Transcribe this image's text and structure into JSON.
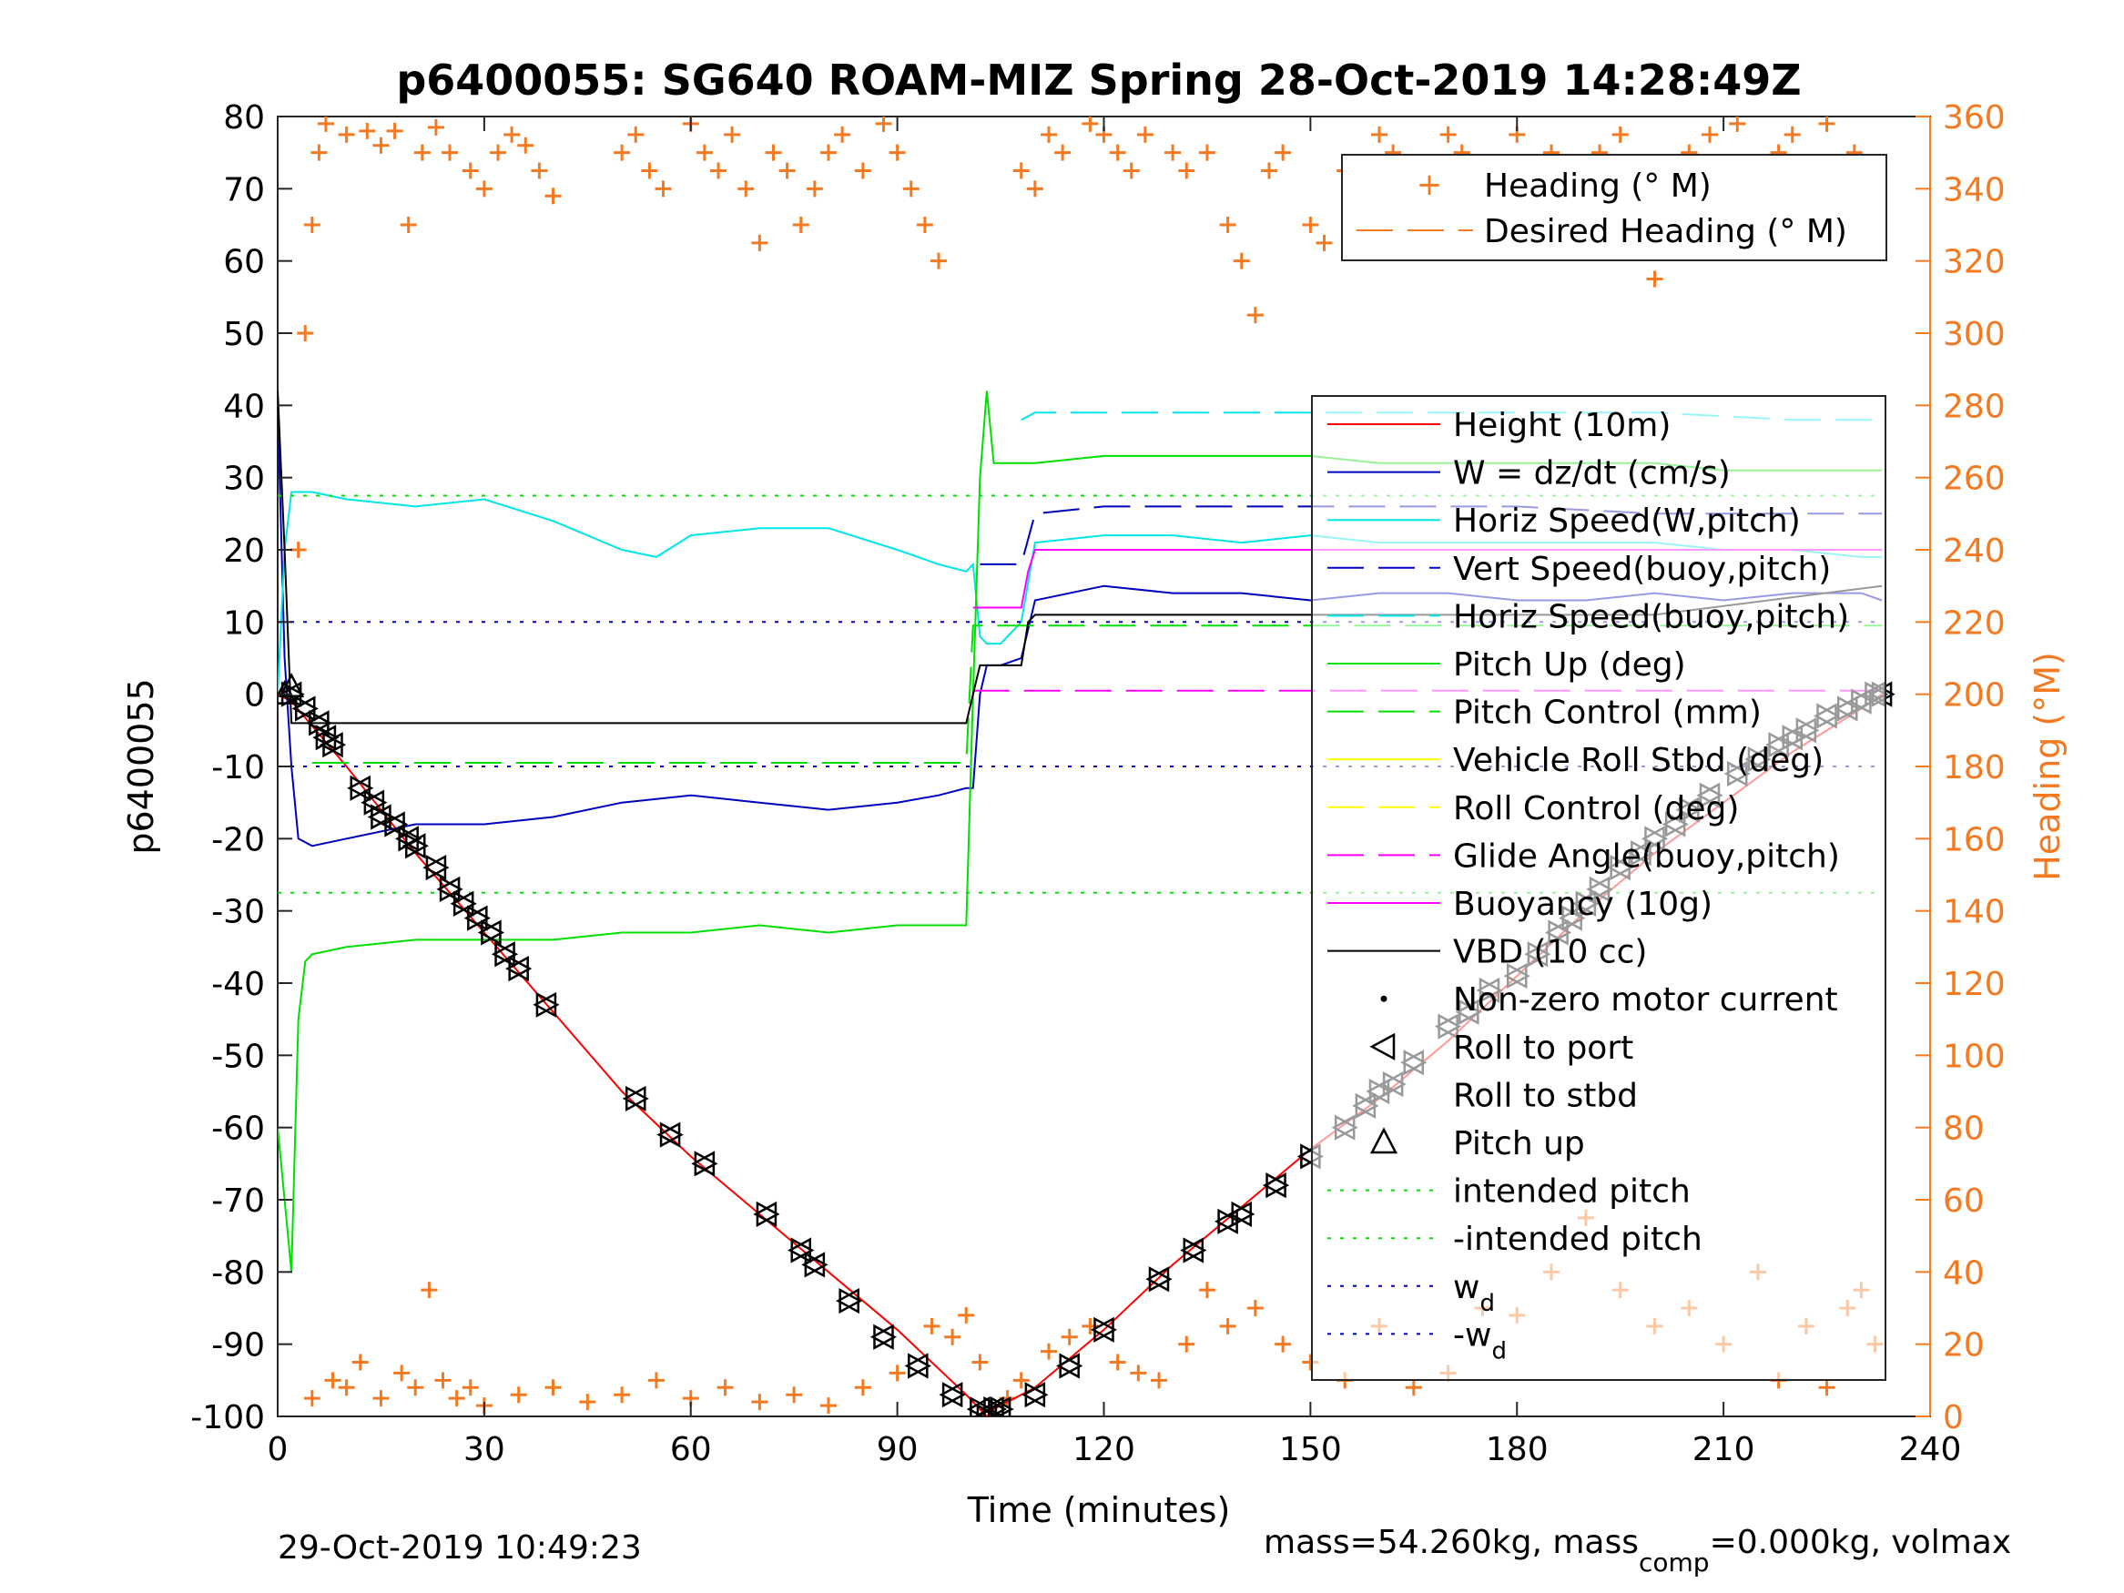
{
  "chart_data": {
    "type": "line",
    "title": "p6400055: SG640 ROAM-MIZ Spring 28-Oct-2019 14:28:49Z",
    "xlabel": "Time (minutes)",
    "ylabel": "p6400055",
    "ylabel_right": "Heading (°M)",
    "xlim": [
      0,
      240
    ],
    "ylim": [
      -100,
      80
    ],
    "ylim_right": [
      0,
      360
    ],
    "x_ticks": [
      "0",
      "30",
      "60",
      "90",
      "120",
      "150",
      "180",
      "210",
      "240"
    ],
    "y_ticks": [
      "80",
      "70",
      "60",
      "50",
      "40",
      "30",
      "20",
      "10",
      "0",
      "-10",
      "-20",
      "-30",
      "-40",
      "-50",
      "-60",
      "-70",
      "-80",
      "-90",
      "-100"
    ],
    "y_right_ticks": [
      "360",
      "340",
      "320",
      "300",
      "280",
      "260",
      "240",
      "220",
      "200",
      "180",
      "160",
      "140",
      "120",
      "100",
      "80",
      "60",
      "40",
      "20",
      "0"
    ],
    "footer_left": "29-Oct-2019 10:49:23",
    "footer_right": "mass=54.260kg, mass",
    "footer_right_sub": "comp",
    "footer_right_tail": "=0.000kg, volmax",
    "heading_legend": [
      {
        "label": "Heading (° M)",
        "color": "#f47920",
        "style": "marker-plus"
      },
      {
        "label": "Desired Heading (° M)",
        "color": "#f47920",
        "style": "dashed"
      }
    ],
    "legend": [
      {
        "label": "Height (10m)",
        "color": "#ff0000",
        "style": "solid"
      },
      {
        "label": "W = dz/dt (cm/s)",
        "color": "#0000c0",
        "style": "solid"
      },
      {
        "label": "Horiz Speed(W,pitch)",
        "color": "#00e5e5",
        "style": "solid"
      },
      {
        "label": "Vert Speed(buoy,pitch)",
        "color": "#0000c0",
        "style": "dashed"
      },
      {
        "label": "Horiz Speed(buoy,pitch)",
        "color": "#00e5e5",
        "style": "dashed"
      },
      {
        "label": "Pitch Up (deg)",
        "color": "#00e000",
        "style": "solid"
      },
      {
        "label": "Pitch Control (mm)",
        "color": "#00e000",
        "style": "dashed"
      },
      {
        "label": "Vehicle Roll Stbd (deg)",
        "color": "#ffff00",
        "style": "solid"
      },
      {
        "label": "Roll Control (deg)",
        "color": "#ffff00",
        "style": "dashed"
      },
      {
        "label": "Glide Angle(buoy,pitch)",
        "color": "#ff00ff",
        "style": "dashed"
      },
      {
        "label": "Buoyancy (10g)",
        "color": "#ff00ff",
        "style": "solid"
      },
      {
        "label": "VBD (10 cc)",
        "color": "#000000",
        "style": "solid"
      },
      {
        "label": "Non-zero motor current",
        "color": "#000000",
        "style": "dot-marker"
      },
      {
        "label": "Roll to port",
        "color": "#000000",
        "style": "tri-left"
      },
      {
        "label": "Roll to stbd",
        "color": "#000000",
        "style": "tri-right"
      },
      {
        "label": "Pitch up",
        "color": "#000000",
        "style": "tri-up"
      },
      {
        "label": "intended pitch",
        "color": "#00e000",
        "style": "dotted"
      },
      {
        "label": "-intended pitch",
        "color": "#00e000",
        "style": "dotted"
      },
      {
        "label": "w",
        "sub": "d",
        "color": "#0000c0",
        "style": "dotted"
      },
      {
        "label": "-w",
        "sub": "d",
        "color": "#0000c0",
        "style": "dotted"
      }
    ],
    "series": [
      {
        "key": "height",
        "color": "#ff0000",
        "x": [
          0,
          2,
          10,
          20,
          30,
          40,
          50,
          60,
          70,
          80,
          90,
          100,
          103,
          104,
          110,
          120,
          130,
          140,
          150,
          160,
          170,
          180,
          190,
          200,
          210,
          220,
          230,
          233
        ],
        "y": [
          0,
          -1,
          -10,
          -22,
          -33,
          -44,
          -55,
          -64,
          -72,
          -80,
          -88,
          -97,
          -100,
          -99,
          -96,
          -88,
          -79,
          -71,
          -63,
          -56,
          -48,
          -39,
          -30,
          -22,
          -15,
          -8,
          -2,
          0
        ]
      },
      {
        "key": "w",
        "color": "#0000c0",
        "x": [
          0,
          1,
          2,
          3,
          5,
          10,
          20,
          30,
          40,
          50,
          60,
          70,
          80,
          90,
          96,
          100,
          101,
          102,
          103,
          105,
          108,
          110,
          120,
          130,
          140,
          150,
          160,
          170,
          180,
          190,
          200,
          210,
          220,
          230,
          233
        ],
        "y": [
          40,
          5,
          -10,
          -20,
          -21,
          -20,
          -18,
          -18,
          -17,
          -15,
          -14,
          -15,
          -16,
          -15,
          -14,
          -13,
          -13,
          0,
          4,
          4,
          5,
          13,
          15,
          14,
          14,
          13,
          14,
          14,
          13,
          13,
          14,
          13,
          14,
          14,
          13
        ]
      },
      {
        "key": "horiz_speed_w",
        "color": "#00e5e5",
        "x": [
          0,
          1,
          2,
          5,
          10,
          20,
          30,
          40,
          50,
          55,
          60,
          70,
          80,
          90,
          96,
          100,
          101,
          102,
          103,
          105,
          108,
          110,
          120,
          130,
          140,
          150,
          160,
          170,
          180,
          190,
          200,
          210,
          220,
          230,
          233
        ],
        "y": [
          0,
          20,
          28,
          28,
          27,
          26,
          27,
          24,
          20,
          19,
          22,
          23,
          23,
          20,
          18,
          17,
          18,
          8,
          7,
          7,
          10,
          21,
          22,
          22,
          21,
          22,
          21,
          21,
          21,
          21,
          21,
          20,
          20,
          19,
          19
        ]
      },
      {
        "key": "vert_speed_buoy",
        "color": "#0000c0",
        "dash": "40,16",
        "x": [
          102,
          108,
          110,
          120,
          140,
          160,
          180,
          200,
          220,
          233
        ],
        "y": [
          18,
          18,
          25,
          26,
          26,
          26,
          26,
          25,
          25,
          25
        ]
      },
      {
        "key": "horiz_speed_buoy",
        "color": "#00e5e5",
        "dash": "40,16",
        "x": [
          108,
          110,
          120,
          140,
          160,
          180,
          200,
          220,
          233
        ],
        "y": [
          38,
          39,
          39,
          39,
          39,
          39,
          39,
          38,
          38
        ]
      },
      {
        "key": "pitch_up",
        "color": "#00e000",
        "x": [
          0,
          1,
          2,
          3,
          4,
          5,
          10,
          20,
          30,
          40,
          50,
          60,
          70,
          80,
          90,
          96,
          100,
          101,
          102,
          103,
          104,
          105,
          108,
          110,
          120,
          130,
          140,
          150,
          160,
          170,
          180,
          190,
          200,
          210,
          220,
          230,
          233
        ],
        "y": [
          -60,
          -70,
          -80,
          -45,
          -37,
          -36,
          -35,
          -34,
          -34,
          -34,
          -33,
          -33,
          -32,
          -33,
          -32,
          -32,
          -32,
          0,
          30,
          42,
          32,
          32,
          32,
          32,
          33,
          33,
          33,
          33,
          32,
          32,
          32,
          32,
          32,
          31,
          31,
          31,
          31
        ]
      },
      {
        "key": "pitch_control",
        "color": "#00e000",
        "dash": "40,16",
        "x": [
          5,
          100,
          101,
          233
        ],
        "y": [
          -9.5,
          -9.5,
          9.5,
          9.5
        ]
      },
      {
        "key": "buoyancy",
        "color": "#ff00ff",
        "x": [
          101,
          108,
          109,
          110,
          120,
          140,
          160,
          180,
          200,
          220,
          233
        ],
        "y": [
          12,
          12,
          17,
          20,
          20,
          20,
          20,
          20,
          20,
          20,
          20
        ]
      },
      {
        "key": "glide_angle",
        "color": "#ff00ff",
        "dash": "40,16",
        "x": [
          101,
          233
        ],
        "y": [
          0.5,
          0.5
        ]
      },
      {
        "key": "vbd",
        "color": "#000000",
        "x": [
          0,
          1,
          2,
          5,
          100,
          101,
          102,
          108,
          109,
          110,
          150,
          200,
          233
        ],
        "y": [
          42,
          20,
          -4,
          -4,
          -4,
          0,
          4,
          4,
          10,
          11,
          11,
          11,
          15
        ]
      },
      {
        "key": "intended_pitch",
        "color": "#00e000",
        "dash": "4,10",
        "x": [
          0,
          233
        ],
        "y": [
          27.5,
          27.5
        ]
      },
      {
        "key": "neg_intended_pitch",
        "color": "#00e000",
        "dash": "4,10",
        "x": [
          0,
          233
        ],
        "y": [
          -27.5,
          -27.5
        ]
      },
      {
        "key": "wd",
        "color": "#0000c0",
        "dash": "4,10",
        "x": [
          0,
          233
        ],
        "y": [
          10,
          10
        ]
      },
      {
        "key": "neg_wd",
        "color": "#0000c0",
        "dash": "4,10",
        "x": [
          0,
          233
        ],
        "y": [
          -10,
          -10
        ]
      }
    ],
    "roll_markers": {
      "x": [
        2,
        4,
        6,
        7,
        8,
        12,
        14,
        15,
        17,
        19,
        20,
        23,
        25,
        27,
        29,
        31,
        33,
        35,
        39,
        52,
        57,
        62,
        71,
        76,
        78,
        83,
        88,
        93,
        98,
        102,
        103,
        104,
        105,
        110,
        115,
        120,
        128,
        133,
        138,
        140,
        145,
        150,
        155,
        158,
        160,
        162,
        165,
        170,
        173,
        176,
        180,
        183,
        186,
        188,
        190,
        192,
        195,
        198,
        200,
        203,
        205,
        208,
        212,
        215,
        218,
        220,
        222,
        225,
        228,
        230,
        232,
        233
      ],
      "y": [
        0,
        -2,
        -4,
        -6,
        -7,
        -13,
        -15,
        -17,
        -18,
        -20,
        -21,
        -24,
        -27,
        -29,
        -31,
        -33,
        -36,
        -38,
        -43,
        -56,
        -61,
        -65,
        -72,
        -77,
        -79,
        -84,
        -89,
        -93,
        -97,
        -99,
        -100,
        -99,
        -99,
        -97,
        -93,
        -88,
        -81,
        -77,
        -73,
        -72,
        -68,
        -64,
        -60,
        -57,
        -55,
        -54,
        -51,
        -46,
        -44,
        -41,
        -39,
        -36,
        -33,
        -31,
        -29,
        -27,
        -24,
        -22,
        -20,
        -18,
        -16,
        -14,
        -11,
        -9,
        -7,
        -6,
        -5,
        -3,
        -2,
        -1,
        0,
        0
      ]
    },
    "heading_top_x": [
      3,
      4,
      5,
      6,
      7,
      10,
      13,
      15,
      17,
      19,
      21,
      23,
      25,
      28,
      30,
      32,
      34,
      36,
      38,
      40,
      50,
      52,
      54,
      56,
      60,
      62,
      64,
      66,
      68,
      70,
      72,
      74,
      76,
      78,
      80,
      82,
      85,
      88,
      90,
      92,
      94,
      96,
      108,
      110,
      112,
      114,
      118,
      120,
      122,
      124,
      126,
      130,
      132,
      135,
      138,
      140,
      142,
      144,
      146,
      150,
      152,
      155,
      160,
      162,
      164,
      166,
      170,
      172,
      175,
      178,
      180,
      185,
      190,
      192,
      195,
      198,
      200,
      202,
      205,
      208,
      212,
      215,
      218,
      220,
      222,
      225,
      227,
      229,
      231
    ],
    "heading_top_y": [
      240,
      300,
      330,
      350,
      358,
      355,
      356,
      352,
      356,
      330,
      350,
      357,
      350,
      345,
      340,
      350,
      355,
      352,
      345,
      338,
      350,
      355,
      345,
      340,
      358,
      350,
      345,
      355,
      340,
      325,
      350,
      345,
      330,
      340,
      350,
      355,
      345,
      358,
      350,
      340,
      330,
      320,
      345,
      340,
      355,
      350,
      358,
      355,
      350,
      345,
      355,
      350,
      345,
      350,
      330,
      320,
      305,
      345,
      350,
      330,
      325,
      345,
      355,
      350,
      340,
      330,
      355,
      350,
      345,
      330,
      355,
      350,
      345,
      350,
      355,
      330,
      315,
      345,
      350,
      355,
      358,
      345,
      350,
      355,
      345,
      358,
      340,
      350,
      345
    ],
    "heading_bottom_x": [
      5,
      8,
      10,
      12,
      15,
      18,
      20,
      22,
      24,
      26,
      28,
      30,
      35,
      40,
      45,
      50,
      55,
      60,
      65,
      70,
      75,
      80,
      85,
      90,
      95,
      98,
      100,
      102,
      106,
      108,
      112,
      115,
      118,
      122,
      125,
      128,
      132,
      135,
      138,
      142,
      146,
      150,
      155,
      160,
      165,
      170,
      175,
      180,
      185,
      190,
      195,
      200,
      205,
      210,
      215,
      218,
      222,
      225,
      228,
      230,
      232
    ],
    "heading_bottom_y": [
      5,
      10,
      8,
      15,
      5,
      12,
      8,
      35,
      10,
      5,
      8,
      3,
      6,
      8,
      4,
      6,
      10,
      5,
      8,
      4,
      6,
      3,
      8,
      12,
      25,
      22,
      28,
      15,
      5,
      10,
      18,
      22,
      25,
      15,
      12,
      10,
      20,
      35,
      25,
      30,
      20,
      15,
      10,
      25,
      8,
      12,
      30,
      28,
      40,
      55,
      35,
      25,
      30,
      20,
      40,
      10,
      25,
      8,
      30,
      35,
      20
    ]
  }
}
